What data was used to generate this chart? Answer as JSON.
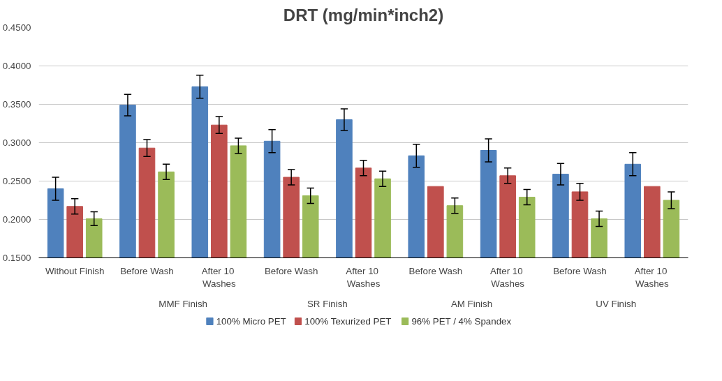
{
  "chart_data": {
    "type": "bar",
    "title": "DRT (mg/min*inch2)",
    "categories": [
      "Without Finish",
      "Before Wash",
      "After  10 Washes",
      "Before Wash",
      "After  10 Washes",
      "Before Wash",
      "After  10 Washes",
      "Before Wash",
      "After  10 Washes"
    ],
    "series": [
      {
        "name": "100% Micro PET",
        "color": "#4f81bd",
        "values": [
          0.24,
          0.349,
          0.373,
          0.302,
          0.33,
          0.283,
          0.29,
          0.259,
          0.272
        ],
        "errors": [
          0.015,
          0.014,
          0.015,
          0.015,
          0.014,
          0.015,
          0.015,
          0.014,
          0.015
        ]
      },
      {
        "name": "100% Texurized PET",
        "color": "#c0504d",
        "values": [
          0.217,
          0.293,
          0.323,
          0.255,
          0.267,
          0.243,
          0.257,
          0.236,
          0.243
        ],
        "errors": [
          0.01,
          0.011,
          0.011,
          0.01,
          0.01,
          null,
          0.01,
          0.011,
          null
        ]
      },
      {
        "name": "96% PET / 4% Spandex",
        "color": "#9bbb59",
        "values": [
          0.201,
          0.262,
          0.296,
          0.231,
          0.253,
          0.218,
          0.229,
          0.201,
          0.225
        ],
        "errors": [
          0.009,
          0.01,
          0.01,
          0.01,
          0.01,
          0.01,
          0.01,
          0.01,
          0.011
        ]
      }
    ],
    "annotations": [
      "MMF Finish",
      "SR Finish",
      "AM Finish",
      "UV Finish"
    ],
    "ylim": [
      0.15,
      0.45
    ],
    "yticks": [
      {
        "value": 0.15,
        "label": "0.1500"
      },
      {
        "value": 0.2,
        "label": "0.2000"
      },
      {
        "value": 0.25,
        "label": "0.2500"
      },
      {
        "value": 0.3,
        "label": "0.3000"
      },
      {
        "value": 0.35,
        "label": "0.3500"
      },
      {
        "value": 0.4,
        "label": "0.4000"
      },
      {
        "value": 0.45,
        "label": "0.4500"
      }
    ],
    "grid": "y",
    "legend": "bottom"
  }
}
